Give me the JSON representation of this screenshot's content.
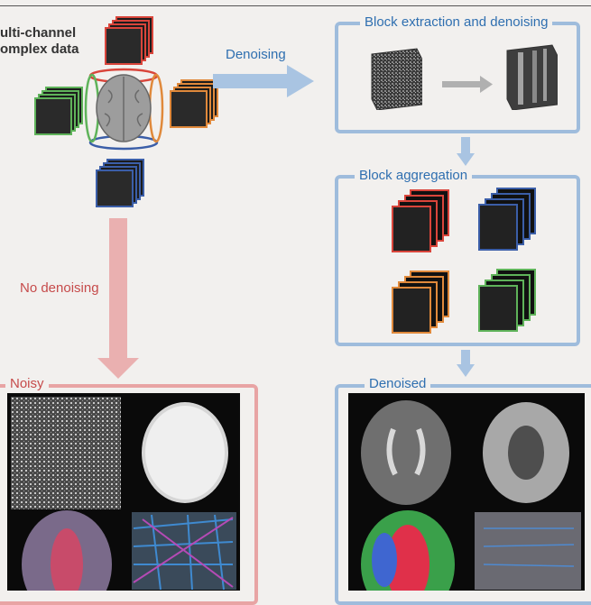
{
  "labels": {
    "multichannel_line1": "ulti-channel",
    "multichannel_line2": "omplex data",
    "denoising": "Denoising",
    "no_denoising": "No denoising"
  },
  "panels": {
    "block_extraction": "Block extraction and denoising",
    "block_aggregation": "Block aggregation",
    "noisy": "Noisy",
    "denoised": "Denoised"
  },
  "colors": {
    "blue_panel": "#9fbcdc",
    "red_panel": "#e8a4a4",
    "blue_text": "#2f6fb0",
    "red_text": "#c64b4b",
    "stack_red": "#d9453b",
    "stack_green": "#5fb35a",
    "stack_orange": "#e0893b",
    "stack_blue": "#3b5ea8"
  }
}
